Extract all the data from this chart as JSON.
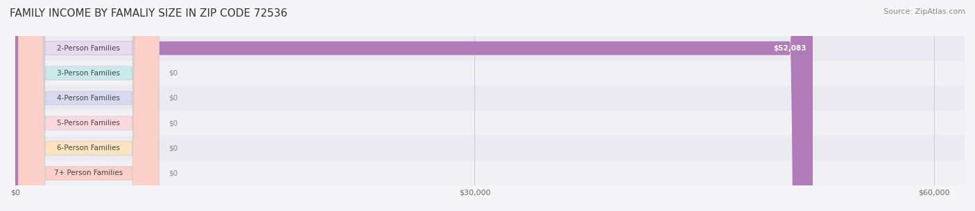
{
  "title": "FAMILY INCOME BY FAMALIY SIZE IN ZIP CODE 72536",
  "source": "Source: ZipAtlas.com",
  "categories": [
    "2-Person Families",
    "3-Person Families",
    "4-Person Families",
    "5-Person Families",
    "6-Person Families",
    "7+ Person Families"
  ],
  "values": [
    52083,
    0,
    0,
    0,
    0,
    0
  ],
  "bar_colors": [
    "#b07cb8",
    "#7ececa",
    "#a9a9d4",
    "#f4a0b0",
    "#f5c898",
    "#f0a898"
  ],
  "label_bg_colors": [
    "#e8d8f0",
    "#c8eaea",
    "#d8d8f0",
    "#fad8e0",
    "#fce4c0",
    "#fad0c8"
  ],
  "xlim": [
    0,
    62000
  ],
  "xticks": [
    0,
    30000,
    60000
  ],
  "xtick_labels": [
    "$0",
    "$30,000",
    "$60,000"
  ],
  "bar_height": 0.55,
  "bg_color": "#f5f5f8",
  "row_bg_colors": [
    "#eaeaf0",
    "#f0f0f5"
  ],
  "title_fontsize": 11,
  "source_fontsize": 8,
  "label_fontsize": 7.5,
  "value_fontsize": 7.5,
  "grid_color": "#ccccdd",
  "value_color_inside": "#ffffff",
  "value_color_outside": "#888888"
}
